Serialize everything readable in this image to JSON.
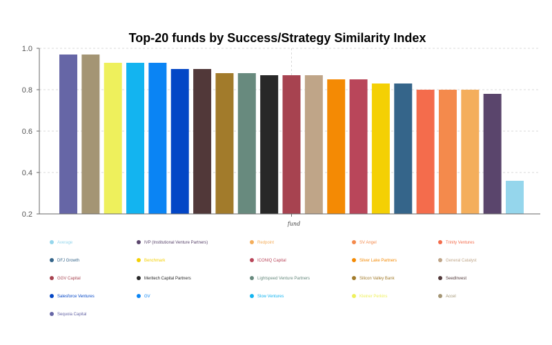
{
  "chart_data": {
    "type": "bar",
    "title": "Top-20 funds by Success/Strategy Similarity Index",
    "xlabel": "fund",
    "ylabel": "",
    "ylim": [
      0.2,
      1.0
    ],
    "yticks": [
      "0.2",
      "0.4",
      "0.6",
      "0.8",
      "1.0"
    ],
    "grid": true,
    "legend_position": "bottom",
    "categories": [
      "Sequoia Capital",
      "Accel",
      "Kleiner Perkins",
      "Slow Ventures",
      "GV",
      "Salesforce Ventures",
      "SeedInvest",
      "Silicon Valley Bank",
      "Lightspeed Venture Partners",
      "Meritech Capital Partners",
      "GGV Capital",
      "General Catalyst",
      "Silver Lake Partners",
      "ICONIQ Capital",
      "Benchmark",
      "DFJ Growth",
      "Trinity Ventures",
      "SV Angel",
      "Redpoint",
      "IVP (Institutional Venture Partners)",
      "Average"
    ],
    "values": [
      0.97,
      0.97,
      0.93,
      0.93,
      0.93,
      0.9,
      0.9,
      0.88,
      0.88,
      0.87,
      0.87,
      0.87,
      0.85,
      0.85,
      0.83,
      0.83,
      0.8,
      0.8,
      0.8,
      0.78,
      0.36
    ],
    "colors": [
      "#6666a6",
      "#a49574",
      "#eef05c",
      "#13b4f0",
      "#0a84f4",
      "#0346c6",
      "#513839",
      "#a27b2b",
      "#688a7e",
      "#282828",
      "#a74350",
      "#bfa588",
      "#f48a04",
      "#b9465a",
      "#f4d004",
      "#35658a",
      "#f46c4c",
      "#f48a4c",
      "#f4ae5c",
      "#5a456c",
      "#95d6ec"
    ],
    "legend": [
      "Average",
      "IVP (Institutional Venture Partners)",
      "Redpoint",
      "SV Angel",
      "Trinity Ventures",
      "DFJ Growth",
      "Benchmark",
      "ICONIQ Capital",
      "Silver Lake Partners",
      "General Catalyst",
      "GGV Capital",
      "Meritech Capital Partners",
      "Lightspeed Venture Partners",
      "Silicon Valley Bank",
      "SeedInvest",
      "Salesforce Ventures",
      "GV",
      "Slow Ventures",
      "Kleiner Perkins",
      "Accel",
      "Sequoia Capital"
    ]
  }
}
